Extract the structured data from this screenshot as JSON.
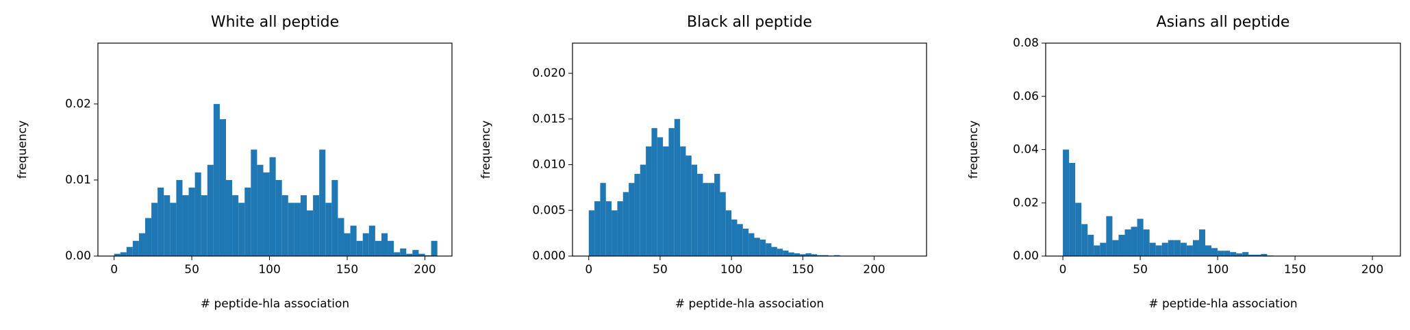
{
  "chart_data": [
    {
      "type": "histogram",
      "title": "White  all peptide",
      "xlabel": "# peptide-hla association",
      "ylabel": "frequency",
      "color": "#1f77b4",
      "bins": [
        0,
        4,
        8,
        12,
        16,
        20,
        24,
        28,
        32,
        36,
        40,
        44,
        48,
        52,
        56,
        60,
        64,
        68,
        72,
        76,
        80,
        84,
        88,
        92,
        96,
        100,
        104,
        108,
        112,
        116,
        120,
        124,
        128,
        132,
        136,
        140,
        144,
        148,
        152,
        156,
        160,
        164,
        168,
        172,
        176,
        180,
        184,
        188,
        192,
        196,
        200,
        204,
        208
      ],
      "values": [
        0.0003,
        0.0005,
        0.0012,
        0.002,
        0.003,
        0.005,
        0.007,
        0.009,
        0.008,
        0.007,
        0.01,
        0.008,
        0.009,
        0.011,
        0.008,
        0.012,
        0.02,
        0.018,
        0.01,
        0.008,
        0.007,
        0.009,
        0.014,
        0.012,
        0.011,
        0.013,
        0.01,
        0.008,
        0.007,
        0.007,
        0.008,
        0.006,
        0.008,
        0.014,
        0.007,
        0.01,
        0.005,
        0.003,
        0.004,
        0.002,
        0.003,
        0.004,
        0.002,
        0.003,
        0.002,
        0.0005,
        0.001,
        0.0003,
        0.0008,
        0.0003,
        0.0001,
        0.002
      ],
      "xlim": [
        -10.4,
        217.4
      ],
      "ylim": [
        0,
        0.028
      ],
      "xticks": [
        0,
        50,
        100,
        150,
        200
      ],
      "yticks": [
        {
          "value": 0,
          "label": "0.00"
        },
        {
          "value": 0.01,
          "label": "0.01"
        },
        {
          "value": 0.02,
          "label": "0.02"
        }
      ]
    },
    {
      "type": "histogram",
      "title": "Black  all peptide",
      "xlabel": "# peptide-hla association",
      "ylabel": "frequency",
      "color": "#1f77b4",
      "bins": [
        0,
        4,
        8,
        12,
        16,
        20,
        24,
        28,
        32,
        36,
        40,
        44,
        48,
        52,
        56,
        60,
        64,
        68,
        72,
        76,
        80,
        84,
        88,
        92,
        96,
        100,
        104,
        108,
        112,
        116,
        120,
        124,
        128,
        132,
        136,
        140,
        144,
        148,
        152,
        156,
        160,
        164,
        168,
        172,
        176,
        180,
        184,
        188,
        192,
        196,
        200,
        204,
        208,
        212,
        216,
        220,
        224
      ],
      "values": [
        0.005,
        0.006,
        0.008,
        0.006,
        0.005,
        0.006,
        0.007,
        0.008,
        0.009,
        0.01,
        0.012,
        0.014,
        0.013,
        0.012,
        0.014,
        0.015,
        0.012,
        0.011,
        0.01,
        0.009,
        0.008,
        0.008,
        0.009,
        0.007,
        0.005,
        0.004,
        0.0035,
        0.003,
        0.0025,
        0.002,
        0.0018,
        0.0014,
        0.001,
        0.0008,
        0.0006,
        0.0004,
        0.0003,
        0.0002,
        0.0003,
        0.0002,
        0.0001,
        0.0001,
        5e-05,
        0.0001,
        0,
        0,
        0,
        0,
        0,
        0,
        0,
        0,
        0,
        0,
        0,
        0
      ],
      "xlim": [
        -11.4,
        236.7
      ],
      "ylim": [
        0,
        0.0233
      ],
      "xticks": [
        0,
        50,
        100,
        150,
        200
      ],
      "yticks": [
        {
          "value": 0,
          "label": "0.000"
        },
        {
          "value": 0.005,
          "label": "0.005"
        },
        {
          "value": 0.01,
          "label": "0.010"
        },
        {
          "value": 0.015,
          "label": "0.015"
        },
        {
          "value": 0.02,
          "label": "0.020"
        }
      ]
    },
    {
      "type": "histogram",
      "title": "Asians  all peptide",
      "xlabel": "# peptide-hla association",
      "ylabel": "frequency",
      "color": "#1f77b4",
      "bins": [
        0,
        4,
        8,
        12,
        16,
        20,
        24,
        28,
        32,
        36,
        40,
        44,
        48,
        52,
        56,
        60,
        64,
        68,
        72,
        76,
        80,
        84,
        88,
        92,
        96,
        100,
        104,
        108,
        112,
        116,
        120,
        124,
        128,
        132,
        136,
        140,
        144,
        148,
        152,
        156,
        160,
        164,
        168,
        172,
        176,
        180,
        184,
        188,
        192,
        196,
        200,
        204,
        208
      ],
      "values": [
        0.04,
        0.035,
        0.02,
        0.012,
        0.008,
        0.004,
        0.005,
        0.015,
        0.006,
        0.008,
        0.01,
        0.011,
        0.014,
        0.01,
        0.005,
        0.004,
        0.005,
        0.006,
        0.006,
        0.005,
        0.004,
        0.006,
        0.01,
        0.004,
        0.003,
        0.002,
        0.002,
        0.0015,
        0.001,
        0.0015,
        0.0005,
        0.0005,
        0.0008,
        0.0002,
        0,
        0,
        0,
        0,
        0,
        0,
        0,
        0,
        0,
        0,
        0,
        0,
        0,
        0,
        0,
        0,
        0,
        0
      ],
      "xlim": [
        -11.1,
        218.1
      ],
      "ylim": [
        0,
        0.08
      ],
      "xticks": [
        0,
        50,
        100,
        150,
        200
      ],
      "yticks": [
        {
          "value": 0,
          "label": "0.00"
        },
        {
          "value": 0.02,
          "label": "0.02"
        },
        {
          "value": 0.04,
          "label": "0.04"
        },
        {
          "value": 0.06,
          "label": "0.06"
        },
        {
          "value": 0.08,
          "label": "0.08"
        }
      ]
    }
  ]
}
